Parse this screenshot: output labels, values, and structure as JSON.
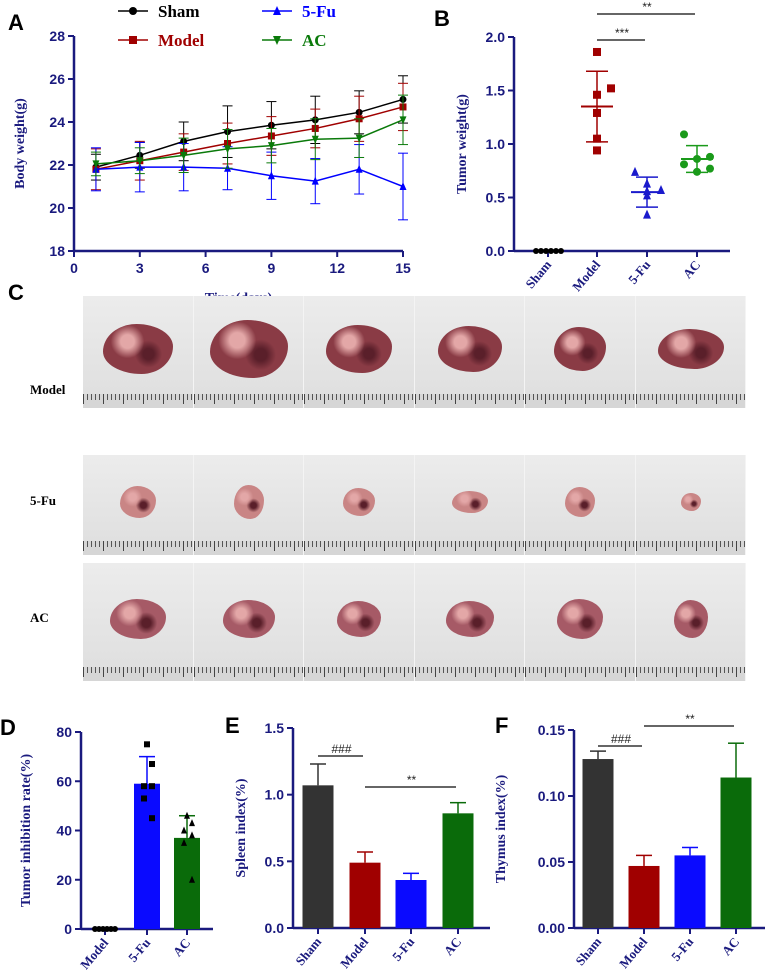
{
  "panel_c": {
    "label": "C",
    "rows": [
      {
        "name": "Model",
        "tumor_color": "#8a3b45",
        "count": 6
      },
      {
        "name": "5-Fu",
        "tumor_color": "#c98585",
        "count": 6
      },
      {
        "name": "AC",
        "tumor_color": "#a65a66",
        "count": 6
      }
    ]
  },
  "colors": {
    "axis": "#1a1a7e",
    "Sham": "#000000",
    "Model": "#a00000",
    "5-Fu": "#0000ff",
    "AC": "#0a7a0a"
  },
  "chart_data": [
    {
      "panel": "A",
      "type": "line",
      "xlabel": "Time(days)",
      "ylabel": "Body weight(g)",
      "xlim": [
        0,
        15
      ],
      "ylim": [
        18,
        28
      ],
      "xticks": [
        "0",
        "3",
        "6",
        "9",
        "12",
        "15"
      ],
      "yticks": [
        "18",
        "20",
        "22",
        "24",
        "26",
        "28"
      ],
      "x": [
        1,
        3,
        5,
        7,
        9,
        11,
        13,
        15
      ],
      "legend_position": "top",
      "series": [
        {
          "name": "Sham",
          "marker": "circle",
          "values": [
            21.9,
            22.45,
            23.1,
            23.55,
            23.85,
            24.1,
            24.45,
            25.05
          ],
          "error": [
            0.6,
            0.6,
            0.9,
            1.2,
            1.1,
            1.1,
            1.0,
            1.1
          ]
        },
        {
          "name": "Model",
          "marker": "square",
          "values": [
            21.8,
            22.2,
            22.6,
            23.0,
            23.35,
            23.7,
            24.15,
            24.7
          ],
          "error": [
            0.95,
            0.9,
            0.85,
            0.95,
            0.9,
            0.9,
            1.05,
            1.1
          ]
        },
        {
          "name": "5-Fu",
          "marker": "triangle-up",
          "values": [
            21.8,
            21.9,
            21.9,
            21.85,
            21.5,
            21.25,
            21.8,
            21.0
          ],
          "error": [
            1.0,
            1.15,
            1.1,
            1.0,
            1.1,
            1.05,
            1.15,
            1.55
          ]
        },
        {
          "name": "AC",
          "marker": "triangle-down",
          "values": [
            22.05,
            22.2,
            22.45,
            22.75,
            22.9,
            23.2,
            23.25,
            24.1
          ],
          "error": [
            0.55,
            0.6,
            0.8,
            0.9,
            0.8,
            0.95,
            0.9,
            1.15
          ]
        }
      ]
    },
    {
      "panel": "B",
      "type": "scatter",
      "ylabel": "Tumor weight(g)",
      "ylim": [
        0,
        2
      ],
      "yticks": [
        "0.0",
        "0.5",
        "1.0",
        "1.5",
        "2.0"
      ],
      "categories": [
        "Sham",
        "Model",
        "5-Fu",
        "AC"
      ],
      "points": [
        [
          0,
          0,
          0,
          0,
          0,
          0
        ],
        [
          1.86,
          1.52,
          1.46,
          1.29,
          1.05,
          0.94
        ],
        [
          0.74,
          0.63,
          0.57,
          0.56,
          0.52,
          0.34
        ],
        [
          1.09,
          0.88,
          0.86,
          0.81,
          0.77,
          0.74
        ]
      ],
      "mean": [
        0,
        1.35,
        0.55,
        0.86
      ],
      "sd": [
        0,
        0.33,
        0.14,
        0.125
      ],
      "significance": [
        {
          "groups": [
            "Model",
            "AC"
          ],
          "label": "**"
        },
        {
          "groups": [
            "Model",
            "5-Fu"
          ],
          "label": "***"
        }
      ]
    },
    {
      "panel": "D",
      "type": "bar",
      "ylabel": "Tumor inhibition rate(%)",
      "ylim": [
        0,
        80
      ],
      "yticks": [
        "0",
        "20",
        "40",
        "60",
        "80"
      ],
      "categories": [
        "Model",
        "5-Fu",
        "AC"
      ],
      "values": [
        0,
        59,
        37
      ],
      "error": [
        0,
        11,
        9
      ],
      "points": [
        [
          0,
          0,
          0,
          0,
          0,
          0
        ],
        [
          75,
          67,
          58,
          58,
          53,
          45
        ],
        [
          46,
          43,
          40,
          38,
          35,
          20
        ]
      ],
      "significance": []
    },
    {
      "panel": "E",
      "type": "bar",
      "ylabel": "Spleen index(%)",
      "ylim": [
        0,
        1.5
      ],
      "yticks": [
        "0.0",
        "0.5",
        "1.0",
        "1.5"
      ],
      "categories": [
        "Sham",
        "Model",
        "5-Fu",
        "AC"
      ],
      "values": [
        1.07,
        0.49,
        0.36,
        0.86
      ],
      "error": [
        0.16,
        0.08,
        0.05,
        0.08
      ],
      "significance": [
        {
          "groups": [
            "Sham",
            "Model"
          ],
          "label": "###"
        },
        {
          "groups": [
            "Model",
            "AC"
          ],
          "label": "**"
        }
      ]
    },
    {
      "panel": "F",
      "type": "bar",
      "ylabel": "Thymus index(%)",
      "ylim": [
        0,
        0.15
      ],
      "yticks": [
        "0.00",
        "0.05",
        "0.10",
        "0.15"
      ],
      "categories": [
        "Sham",
        "Model",
        "5-Fu",
        "AC"
      ],
      "values": [
        0.128,
        0.047,
        0.055,
        0.114
      ],
      "error": [
        0.006,
        0.008,
        0.006,
        0.026
      ],
      "significance": [
        {
          "groups": [
            "Sham",
            "Model"
          ],
          "label": "###"
        },
        {
          "groups": [
            "Model",
            "AC"
          ],
          "label": "**"
        }
      ]
    }
  ]
}
